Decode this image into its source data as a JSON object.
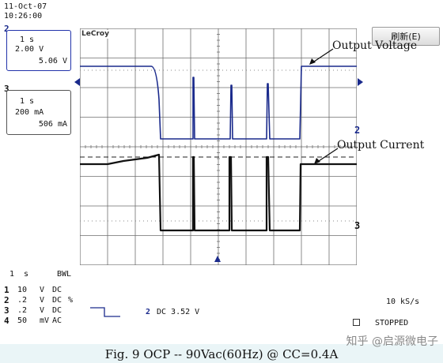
{
  "header": {
    "date": "11-Oct-07",
    "time": "10:26:00"
  },
  "refresh_button": {
    "label": "刷新(E)"
  },
  "brand": "LeCroy",
  "channel_panels": [
    {
      "id": "2",
      "timebase": "1 s",
      "scale": "2.00 V",
      "reading": "5.06 V"
    },
    {
      "id": "3",
      "timebase": "1 s",
      "scale": "200 mA",
      "reading": "506 mA"
    }
  ],
  "annotations": {
    "voltage": "Output Voltage",
    "current": "Output Current"
  },
  "trace_markers": {
    "ch2": "2",
    "ch3": "3"
  },
  "bottom_status": {
    "timebase": "1  s",
    "bwl": "BWL",
    "channels": [
      {
        "num": "1",
        "scale": "10",
        "unit": "V",
        "coupling": "DC"
      },
      {
        "num": "2",
        "scale": ".2",
        "unit": "V",
        "coupling": "DC",
        "extra": "%"
      },
      {
        "num": "3",
        "scale": ".2",
        "unit": "V",
        "coupling": "DC"
      },
      {
        "num": "4",
        "scale": "50",
        "unit": "mV",
        "coupling": "AC"
      }
    ],
    "trigger_channel": "2",
    "trigger_label": "DC 3.52 V",
    "sample_rate": "10 kS/s",
    "state": "STOPPED"
  },
  "caption": "Fig. 9  OCP  -- 90Vac(60Hz) @ CC=0.4A",
  "watermark": "知乎 @启源微电子",
  "colors": {
    "voltage_trace": "#1a2a8c",
    "current_trace": "#111111",
    "grid": "#6e6e6e"
  }
}
